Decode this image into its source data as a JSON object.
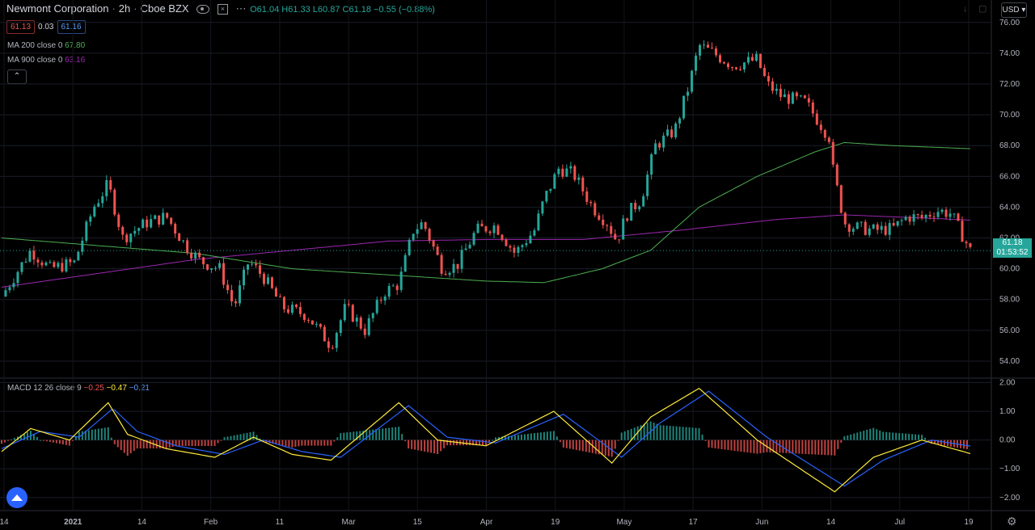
{
  "header": {
    "symbol_name": "Newmont Corporation",
    "interval": "2h",
    "exchange": "Cboe BZX",
    "ohlc_o": "61.04",
    "ohlc_h": "61.33",
    "ohlc_l": "60.87",
    "ohlc_c": "61.18",
    "change": "−0.55 (−0.88%)",
    "o_label": "O",
    "h_label": "H",
    "l_label": "L",
    "c_label": "C"
  },
  "quote": {
    "bid": "61.13",
    "spread": "0.03",
    "ask": "61.16"
  },
  "indicators": {
    "ma200_label": "MA 200 close 0",
    "ma200_value": "67.80",
    "ma900_label": "MA 900 close 0",
    "ma900_value": "63.16",
    "macd_label": "MACD 12 26 close 9",
    "macd_hist": "−0.25",
    "macd_line": "−0.47",
    "macd_signal": "−0.21"
  },
  "currency": "USD",
  "last_price": {
    "price": "61.18",
    "countdown": "01:53:52"
  },
  "colors": {
    "up": "#26a69a",
    "down": "#ef5350",
    "ma200": "#4caf50",
    "ma900": "#9c27b0",
    "macd": "#2962ff",
    "signal": "#ffeb3b",
    "background": "#000000",
    "last_price": "#26a69a"
  },
  "icons": [
    "eye-icon",
    "close-icon",
    "more-icon",
    "chevron-up-icon",
    "settings-gear-icon",
    "tradingview-logo-icon"
  ],
  "chart_data": {
    "type": "candlestick",
    "price_axis": {
      "ticks": [
        "76.00",
        "74.00",
        "72.00",
        "70.00",
        "68.00",
        "66.00",
        "64.00",
        "62.00",
        "60.00",
        "58.00",
        "56.00",
        "54.00"
      ],
      "ylim": [
        53.0,
        76.2
      ]
    },
    "macd_axis": {
      "ticks": [
        "2.00",
        "1.00",
        "0.00",
        "−1.00",
        "−2.00"
      ],
      "ylim": [
        -2.4,
        2.1
      ]
    },
    "x_ticks": [
      "14",
      "2021",
      "14",
      "Feb",
      "11",
      "Mar",
      "15",
      "Apr",
      "19",
      "May",
      "17",
      "Jun",
      "14",
      "Jul",
      "19"
    ],
    "close_anchors": [
      [
        0,
        58.2
      ],
      [
        0.03,
        61.2
      ],
      [
        0.05,
        60.0
      ],
      [
        0.075,
        60.4
      ],
      [
        0.095,
        64.0
      ],
      [
        0.11,
        65.5
      ],
      [
        0.125,
        62.0
      ],
      [
        0.15,
        63.0
      ],
      [
        0.17,
        63.4
      ],
      [
        0.19,
        61.5
      ],
      [
        0.205,
        60.5
      ],
      [
        0.225,
        60.0
      ],
      [
        0.24,
        57.5
      ],
      [
        0.255,
        60.5
      ],
      [
        0.27,
        59.5
      ],
      [
        0.29,
        57.5
      ],
      [
        0.315,
        57.0
      ],
      [
        0.34,
        55.0
      ],
      [
        0.355,
        57.5
      ],
      [
        0.375,
        56.0
      ],
      [
        0.395,
        58.5
      ],
      [
        0.41,
        59.0
      ],
      [
        0.425,
        62.5
      ],
      [
        0.435,
        63.0
      ],
      [
        0.455,
        60.0
      ],
      [
        0.47,
        60.2
      ],
      [
        0.49,
        62.5
      ],
      [
        0.51,
        62.8
      ],
      [
        0.53,
        61.0
      ],
      [
        0.55,
        62.5
      ],
      [
        0.56,
        64.5
      ],
      [
        0.575,
        66.5
      ],
      [
        0.59,
        66.2
      ],
      [
        0.61,
        64.0
      ],
      [
        0.625,
        63.0
      ],
      [
        0.635,
        61.8
      ],
      [
        0.645,
        63.5
      ],
      [
        0.66,
        64.5
      ],
      [
        0.675,
        68.0
      ],
      [
        0.695,
        69.0
      ],
      [
        0.71,
        72.0
      ],
      [
        0.72,
        74.5
      ],
      [
        0.735,
        74.0
      ],
      [
        0.755,
        73.2
      ],
      [
        0.78,
        73.6
      ],
      [
        0.79,
        72.0
      ],
      [
        0.805,
        71.2
      ],
      [
        0.83,
        70.8
      ],
      [
        0.855,
        68.5
      ],
      [
        0.858,
        66.5
      ],
      [
        0.87,
        63.0
      ],
      [
        0.88,
        62.7
      ],
      [
        0.9,
        62.5
      ],
      [
        0.92,
        62.6
      ],
      [
        0.935,
        63.4
      ],
      [
        0.95,
        63.3
      ],
      [
        0.965,
        63.8
      ],
      [
        0.98,
        63.6
      ],
      [
        1.0,
        61.18
      ]
    ],
    "ma200_anchors": [
      [
        0,
        62.0
      ],
      [
        0.1,
        61.5
      ],
      [
        0.2,
        61.0
      ],
      [
        0.3,
        60.0
      ],
      [
        0.4,
        59.6
      ],
      [
        0.5,
        59.2
      ],
      [
        0.56,
        59.1
      ],
      [
        0.62,
        60.0
      ],
      [
        0.67,
        61.2
      ],
      [
        0.72,
        64.0
      ],
      [
        0.78,
        66.0
      ],
      [
        0.84,
        67.6
      ],
      [
        0.87,
        68.2
      ],
      [
        0.92,
        68.0
      ],
      [
        1.0,
        67.8
      ]
    ],
    "ma900_anchors": [
      [
        0,
        58.8
      ],
      [
        0.1,
        59.7
      ],
      [
        0.2,
        60.6
      ],
      [
        0.3,
        61.2
      ],
      [
        0.4,
        61.8
      ],
      [
        0.5,
        61.9
      ],
      [
        0.6,
        61.9
      ],
      [
        0.7,
        62.5
      ],
      [
        0.8,
        63.2
      ],
      [
        0.87,
        63.5
      ],
      [
        0.95,
        63.3
      ],
      [
        1.0,
        63.16
      ]
    ],
    "macd_anchors": [
      [
        0,
        -0.4
      ],
      [
        0.03,
        0.4
      ],
      [
        0.07,
        0.0
      ],
      [
        0.11,
        1.3
      ],
      [
        0.13,
        0.2
      ],
      [
        0.17,
        -0.3
      ],
      [
        0.22,
        -0.6
      ],
      [
        0.26,
        0.1
      ],
      [
        0.3,
        -0.5
      ],
      [
        0.34,
        -0.7
      ],
      [
        0.41,
        1.3
      ],
      [
        0.45,
        0.0
      ],
      [
        0.5,
        -0.2
      ],
      [
        0.57,
        1.0
      ],
      [
        0.63,
        -0.8
      ],
      [
        0.67,
        0.8
      ],
      [
        0.72,
        1.8
      ],
      [
        0.78,
        0.0
      ],
      [
        0.86,
        -1.8
      ],
      [
        0.9,
        -0.6
      ],
      [
        0.95,
        0.0
      ],
      [
        1.0,
        -0.47
      ]
    ],
    "signal_anchors": [
      [
        0,
        -0.3
      ],
      [
        0.04,
        0.3
      ],
      [
        0.08,
        0.1
      ],
      [
        0.115,
        1.1
      ],
      [
        0.14,
        0.3
      ],
      [
        0.18,
        -0.2
      ],
      [
        0.23,
        -0.5
      ],
      [
        0.27,
        0.0
      ],
      [
        0.31,
        -0.4
      ],
      [
        0.35,
        -0.6
      ],
      [
        0.42,
        1.2
      ],
      [
        0.46,
        0.1
      ],
      [
        0.51,
        -0.1
      ],
      [
        0.58,
        0.9
      ],
      [
        0.64,
        -0.6
      ],
      [
        0.68,
        0.6
      ],
      [
        0.73,
        1.7
      ],
      [
        0.79,
        0.1
      ],
      [
        0.87,
        -1.6
      ],
      [
        0.91,
        -0.7
      ],
      [
        0.96,
        0.0
      ],
      [
        1.0,
        -0.21
      ]
    ]
  }
}
